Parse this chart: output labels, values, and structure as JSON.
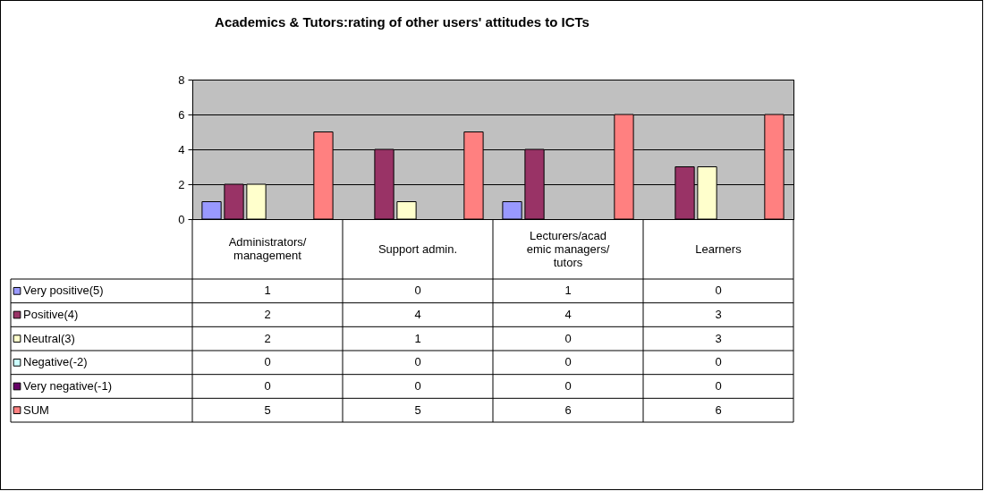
{
  "chart_data": {
    "type": "bar",
    "title": "Academics & Tutors:rating of other users' attitudes to ICTs",
    "categories": [
      "Administrators/ management",
      "Support admin.",
      "Lecturers/academic managers/ tutors",
      "Learners"
    ],
    "series": [
      {
        "name": "Very positive(5)",
        "color": "#9999ff",
        "values": [
          1,
          0,
          1,
          0
        ]
      },
      {
        "name": "Positive(4)",
        "color": "#993366",
        "values": [
          2,
          4,
          4,
          3
        ]
      },
      {
        "name": "Neutral(3)",
        "color": "#ffffcc",
        "values": [
          2,
          1,
          0,
          3
        ]
      },
      {
        "name": "Negative(-2)",
        "color": "#ccffff",
        "values": [
          0,
          0,
          0,
          0
        ]
      },
      {
        "name": "Very negative(-1)",
        "color": "#660066",
        "values": [
          0,
          0,
          0,
          0
        ]
      },
      {
        "name": "SUM",
        "color": "#ff8080",
        "values": [
          5,
          5,
          6,
          6
        ]
      }
    ],
    "ylim": [
      0,
      8
    ],
    "yticks": [
      0,
      2,
      4,
      6,
      8
    ],
    "grid": "y",
    "legend": "bottom left",
    "data_labels": true
  }
}
